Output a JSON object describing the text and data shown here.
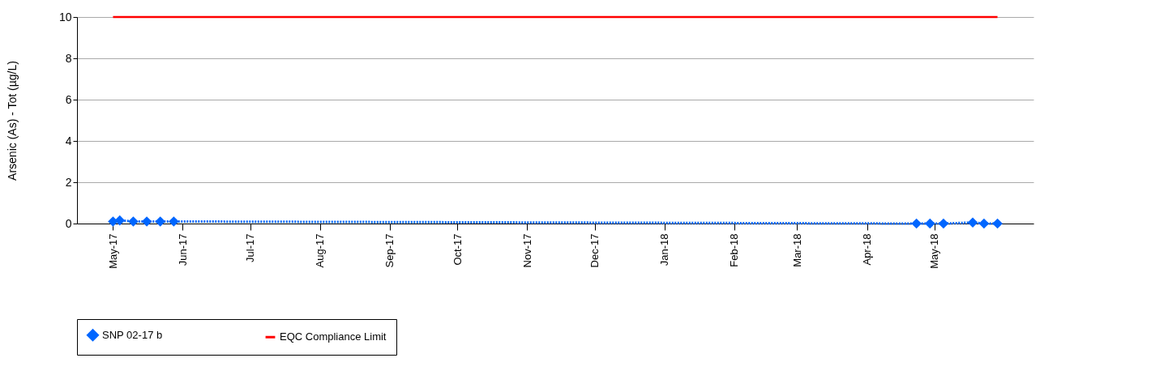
{
  "chart_data": {
    "type": "line",
    "ylabel": "Arsenic (As) - Tot (µg/L)",
    "xlim": [
      "2017-04-15",
      "2018-06-14"
    ],
    "xticks": [
      {
        "value": "2017-05-01",
        "label": "May-17"
      },
      {
        "value": "2017-06-01",
        "label": "Jun-17"
      },
      {
        "value": "2017-07-01",
        "label": "Jul-17"
      },
      {
        "value": "2017-08-01",
        "label": "Aug-17"
      },
      {
        "value": "2017-09-01",
        "label": "Sep-17"
      },
      {
        "value": "2017-10-01",
        "label": "Oct-17"
      },
      {
        "value": "2017-11-01",
        "label": "Nov-17"
      },
      {
        "value": "2017-12-01",
        "label": "Dec-17"
      },
      {
        "value": "2018-01-01",
        "label": "Jan-18"
      },
      {
        "value": "2018-02-01",
        "label": "Feb-18"
      },
      {
        "value": "2018-03-01",
        "label": "Mar-18"
      },
      {
        "value": "2018-04-01",
        "label": "Apr-18"
      },
      {
        "value": "2018-05-01",
        "label": "May-18"
      }
    ],
    "ylim": [
      0,
      10
    ],
    "yticks": [
      0,
      2,
      4,
      6,
      8,
      10
    ],
    "grid": "y",
    "legend": "bottom",
    "series": [
      {
        "name": "SNP 02-17 b",
        "color": "#0066ff",
        "marker": "diamond",
        "line_style": "dotted",
        "x": [
          "2017-05-01",
          "2017-05-04",
          "2017-05-10",
          "2017-05-16",
          "2017-05-22",
          "2017-05-28",
          "2018-04-23",
          "2018-04-29",
          "2018-05-05",
          "2018-05-18",
          "2018-05-23",
          "2018-05-29"
        ],
        "values": [
          0.1,
          0.15,
          0.1,
          0.1,
          0.1,
          0.1,
          0,
          0,
          0,
          0.05,
          0,
          0
        ]
      },
      {
        "name": "EQC Compliance Limit",
        "color": "#ff0000",
        "type": "line",
        "marker": "none",
        "line_style": "solid",
        "x": [
          "2017-05-01",
          "2018-05-29"
        ],
        "values": [
          10,
          10
        ]
      }
    ]
  }
}
